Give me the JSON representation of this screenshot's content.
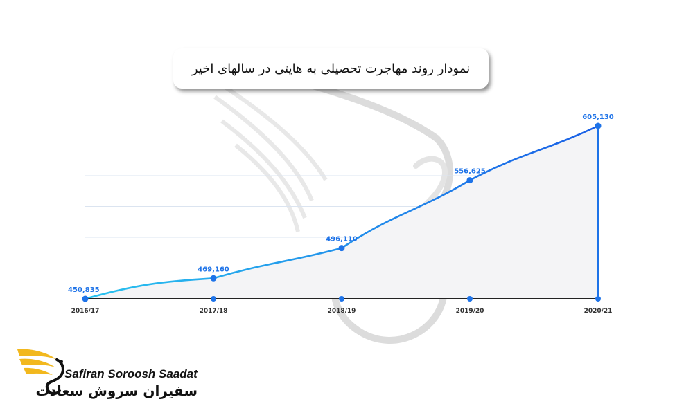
{
  "chart_data": {
    "type": "area",
    "title": "نمودار روند مهاجرت تحصیلی به هایتی در سالهای اخیر",
    "categories": [
      "2016/17",
      "2017/18",
      "2018/19",
      "2019/20",
      "2020/21"
    ],
    "values": [
      450835,
      469160,
      496110,
      556625,
      605130
    ],
    "value_labels": [
      "450,835",
      "469,160",
      "496,110",
      "556,625",
      "605,130"
    ],
    "xlabel": "",
    "ylabel": "",
    "ylim": [
      450835,
      605130
    ],
    "grid": true,
    "legend": "none",
    "colors": {
      "line_start": "#29c3ef",
      "line_end": "#1a5fe6",
      "fill": "#f4f4f6",
      "grid": "#dbe4f0",
      "marker": "#1e73e8"
    }
  },
  "logo": {
    "latin": "Safiran Soroosh Saadat",
    "persian": "سفیران سروش سعادت",
    "colors": {
      "wing": "#f2b81e",
      "text": "#111111"
    }
  },
  "watermark": {
    "icon": "swan-logo-icon"
  }
}
